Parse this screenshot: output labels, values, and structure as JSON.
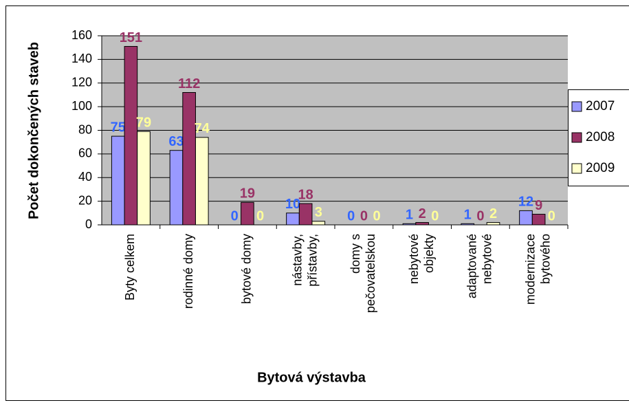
{
  "chart_data": {
    "type": "bar",
    "x_label": "Bytová výstavba",
    "y_label": "Počet dokončených staveb",
    "categories": [
      [
        "Byty celkem"
      ],
      [
        "rodinné domy"
      ],
      [
        "bytové domy"
      ],
      [
        "nástavby,",
        "přístavby,"
      ],
      [
        "domy s",
        "pečovatelskou"
      ],
      [
        "nebytové",
        "objekty"
      ],
      [
        "adaptované",
        "nebytové"
      ],
      [
        "modernizace",
        "bytového"
      ]
    ],
    "series": [
      {
        "name": "2007",
        "color": "#9999ff",
        "label_color": "#3366ff",
        "values": [
          75,
          63,
          0,
          10,
          0,
          1,
          1,
          12
        ]
      },
      {
        "name": "2008",
        "color": "#993366",
        "label_color": "#993366",
        "values": [
          151,
          112,
          19,
          18,
          0,
          2,
          0,
          9
        ]
      },
      {
        "name": "2009",
        "color": "#ffffcc",
        "label_color": "#ffff99",
        "values": [
          79,
          74,
          0,
          3,
          0,
          0,
          2,
          0
        ]
      }
    ],
    "ylim": [
      0,
      160
    ],
    "yticks": [
      0,
      20,
      40,
      60,
      80,
      100,
      120,
      140,
      160
    ],
    "grid": true,
    "plot_background": "#c0c0c0",
    "legend": "right"
  }
}
